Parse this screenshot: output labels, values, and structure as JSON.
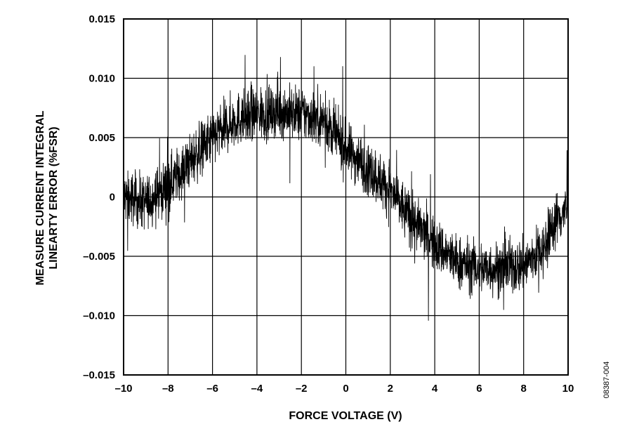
{
  "chart_data": {
    "type": "line",
    "title": "",
    "xlabel": "FORCE VOLTAGE (V)",
    "ylabel_lines": [
      "MEASURE CURRENT INTEGRAL",
      "LINEARTY ERROR (%FSR)"
    ],
    "xlim": [
      -10,
      10
    ],
    "ylim": [
      -0.015,
      0.015
    ],
    "x_ticks": [
      -10,
      -8,
      -6,
      -4,
      -2,
      0,
      2,
      4,
      6,
      8,
      10
    ],
    "x_tick_labels": [
      "–10",
      "–8",
      "–6",
      "–4",
      "–2",
      "0",
      "2",
      "4",
      "6",
      "8",
      "10"
    ],
    "y_ticks": [
      -0.015,
      -0.01,
      -0.005,
      0,
      0.005,
      0.01,
      0.015
    ],
    "y_tick_labels": [
      "–0.015",
      "–0.010",
      "–0.005",
      "0",
      "0.005",
      "0.010",
      "0.015"
    ],
    "grid": true,
    "legend": "none",
    "series_color": "#000000",
    "series": [
      {
        "x": [
          -10,
          -9,
          -8,
          -7,
          -6,
          -5,
          -4,
          -3,
          -2,
          -1,
          0,
          1,
          2,
          3,
          4,
          5,
          6,
          7,
          8,
          9,
          9.4,
          10
        ],
        "y": [
          0.0,
          -0.0005,
          0.001,
          0.003,
          0.005,
          0.0065,
          0.007,
          0.0072,
          0.007,
          0.0065,
          0.004,
          0.0025,
          0.0005,
          -0.002,
          -0.004,
          -0.0055,
          -0.006,
          -0.006,
          -0.0058,
          -0.004,
          -0.002,
          -0.001
        ],
        "noise_band": 0.0022
      }
    ],
    "figure_id": "08387-004"
  }
}
